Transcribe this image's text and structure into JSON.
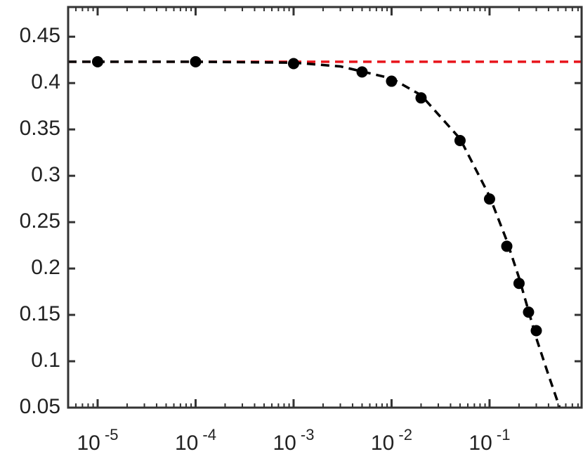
{
  "chart_data": {
    "type": "line",
    "xscale": "log",
    "xlim": [
      5e-06,
      0.87
    ],
    "ylim": [
      0.05,
      0.482
    ],
    "xticks": [
      {
        "value": 1e-05,
        "label": "10^-5"
      },
      {
        "value": 0.0001,
        "label": "10^-4"
      },
      {
        "value": 0.001,
        "label": "10^-3"
      },
      {
        "value": 0.01,
        "label": "10^-2"
      },
      {
        "value": 0.1,
        "label": "10^-1"
      }
    ],
    "yticks": [
      0.05,
      0.1,
      0.15,
      0.2,
      0.25,
      0.3,
      0.35,
      0.4,
      0.45
    ],
    "series": [
      {
        "color": "#e8141b",
        "mode": "dashed",
        "x": [
          5e-06,
          0.87
        ],
        "values": [
          0.423,
          0.423
        ]
      },
      {
        "color": "#000000",
        "mode": "dashed",
        "x": [
          5e-06,
          1e-05,
          0.0001,
          0.001,
          0.003,
          0.01,
          0.02,
          0.05,
          0.1,
          0.15,
          0.2,
          0.3,
          0.4,
          0.52
        ],
        "values": [
          0.423,
          0.423,
          0.423,
          0.422,
          0.418,
          0.405,
          0.387,
          0.34,
          0.278,
          0.23,
          0.19,
          0.125,
          0.085,
          0.05
        ]
      },
      {
        "color": "#000000",
        "mode": "markers",
        "x": [
          1e-05,
          0.0001,
          0.001,
          0.005,
          0.01,
          0.02,
          0.05,
          0.1,
          0.15,
          0.2,
          0.25,
          0.3
        ],
        "values": [
          0.423,
          0.423,
          0.421,
          0.412,
          0.402,
          0.384,
          0.338,
          0.275,
          0.224,
          0.184,
          0.153,
          0.133
        ]
      }
    ]
  }
}
